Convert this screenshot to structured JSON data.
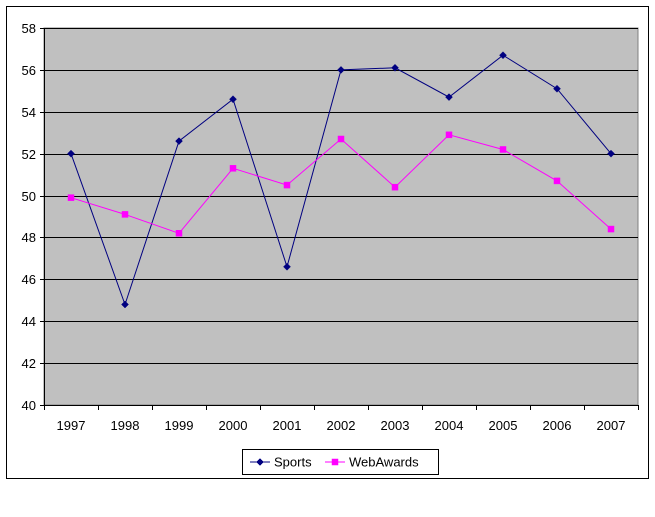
{
  "chart_data": {
    "type": "line",
    "title": "",
    "xlabel": "",
    "ylabel": "",
    "categories": [
      "1997",
      "1998",
      "1999",
      "2000",
      "2001",
      "2002",
      "2003",
      "2004",
      "2005",
      "2006",
      "2007"
    ],
    "ylim": [
      40,
      58
    ],
    "yticks": [
      "40",
      "42",
      "44",
      "46",
      "48",
      "50",
      "52",
      "54",
      "56",
      "58"
    ],
    "grid": true,
    "legend_position": "bottom",
    "series": [
      {
        "name": "Sports",
        "color": "#000080",
        "marker": "diamond",
        "values": [
          52.0,
          44.8,
          52.6,
          54.6,
          46.6,
          56.0,
          56.1,
          54.7,
          56.7,
          55.1,
          52.0
        ]
      },
      {
        "name": "WebAwards",
        "color": "#ff00ff",
        "marker": "square",
        "values": [
          49.9,
          49.1,
          48.2,
          51.3,
          50.5,
          52.7,
          50.4,
          52.9,
          52.2,
          50.7,
          48.4
        ]
      }
    ],
    "plot_background": "#c0c0c0"
  }
}
